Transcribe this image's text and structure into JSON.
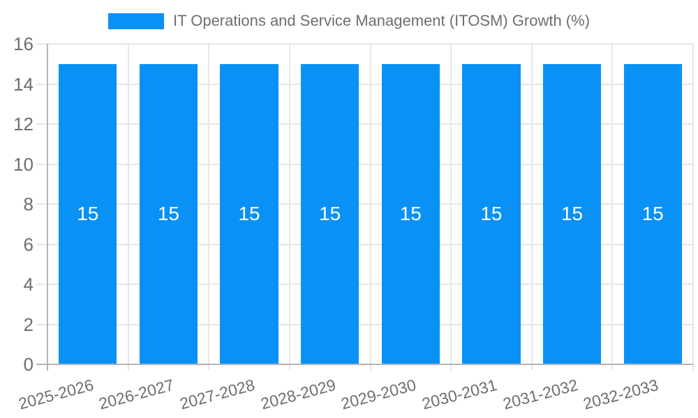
{
  "legend": {
    "label": "IT Operations and Service Management (ITOSM) Growth (%)",
    "swatch_color": "#0a91f5"
  },
  "chart_data": {
    "type": "bar",
    "title": "IT Operations and Service Management (ITOSM) Growth (%)",
    "categories": [
      "2025-2026",
      "2026-2027",
      "2027-2028",
      "2028-2029",
      "2029-2030",
      "2030-2031",
      "2031-2032",
      "2032-2033"
    ],
    "series": [
      {
        "name": "IT Operations and Service Management (ITOSM) Growth (%)",
        "values": [
          15,
          15,
          15,
          15,
          15,
          15,
          15,
          15
        ]
      }
    ],
    "values": [
      15,
      15,
      15,
      15,
      15,
      15,
      15,
      15
    ],
    "bar_value_labels": [
      "15",
      "15",
      "15",
      "15",
      "15",
      "15",
      "15",
      "15"
    ],
    "xlabel": "",
    "ylabel": "",
    "ylim": [
      0,
      16
    ],
    "yticks": [
      0,
      2,
      4,
      6,
      8,
      10,
      12,
      14,
      16
    ],
    "grid": true,
    "legend_position": "top",
    "x_tick_rotation_deg": -15,
    "colors": {
      "bar": "#0a91f5",
      "grid": "#e6e6e6",
      "axis": "#b4b4b4",
      "text": "#6e6e6e",
      "value_text": "#ffffff",
      "background": "#ffffff"
    }
  }
}
